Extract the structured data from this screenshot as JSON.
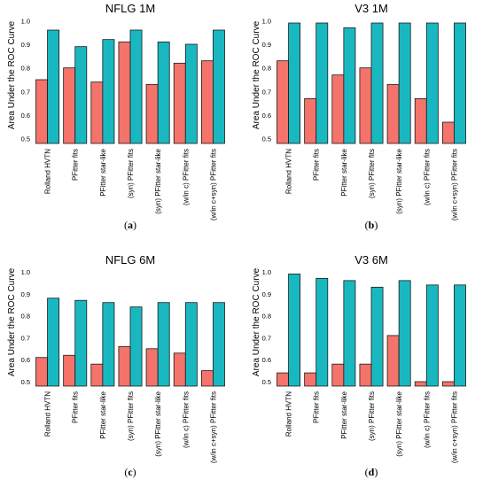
{
  "chart_data": [
    {
      "type": "bar",
      "title": "NFLG 1M",
      "ylabel": "Area Under the ROC Curve",
      "caption_letter": "a",
      "ylim": [
        0.48,
        1.02
      ],
      "yticks": [
        "1.0",
        "0.9",
        "0.8",
        "0.7",
        "0.6",
        "0.5"
      ],
      "ytick_values": [
        1.0,
        0.9,
        0.8,
        0.7,
        0.6,
        0.5
      ],
      "categories": [
        "Rolland HVTN",
        "PFitter fits",
        "PFitter star-like",
        "(syn) PFitter fits",
        "(syn) PFitter star-like",
        "(w/in c) PFitter fits",
        "(w/in c+syn) PFitter fits"
      ],
      "series": [
        {
          "color": "#f4736b",
          "values": [
            0.75,
            0.8,
            0.74,
            0.91,
            0.73,
            0.82,
            0.83
          ]
        },
        {
          "color": "#19b8c1",
          "values": [
            0.96,
            0.89,
            0.92,
            0.96,
            0.91,
            0.9,
            0.96
          ]
        }
      ]
    },
    {
      "type": "bar",
      "title": "V3 1M",
      "ylabel": "Area Under the ROC Curve",
      "caption_letter": "b",
      "ylim": [
        0.48,
        1.02
      ],
      "yticks": [
        "1.0",
        "0.9",
        "0.8",
        "0.7",
        "0.6",
        "0.5"
      ],
      "ytick_values": [
        1.0,
        0.9,
        0.8,
        0.7,
        0.6,
        0.5
      ],
      "categories": [
        "Rolland HVTN",
        "PFitter fits",
        "PFitter star-like",
        "(syn) PFitter fits",
        "(syn) PFitter star-like",
        "(w/in c) PFitter fits",
        "(w/in c+syn) PFitter fits"
      ],
      "series": [
        {
          "color": "#f4736b",
          "values": [
            0.83,
            0.67,
            0.77,
            0.8,
            0.73,
            0.67,
            0.57
          ]
        },
        {
          "color": "#19b8c1",
          "values": [
            0.99,
            0.99,
            0.97,
            0.99,
            0.99,
            0.99,
            0.99
          ]
        }
      ]
    },
    {
      "type": "bar",
      "title": "NFLG 6M",
      "ylabel": "Area Under the ROC Curve",
      "caption_letter": "c",
      "ylim": [
        0.48,
        1.02
      ],
      "yticks": [
        "1.0",
        "0.9",
        "0.8",
        "0.7",
        "0.6",
        "0.5"
      ],
      "ytick_values": [
        1.0,
        0.9,
        0.8,
        0.7,
        0.6,
        0.5
      ],
      "categories": [
        "Rolland HVTN",
        "PFitter fits",
        "PFitter star-like",
        "(syn) PFitter fits",
        "(syn) PFitter star-like",
        "(w/in c) PFitter fits",
        "(w/in c+syn) PFitter fits"
      ],
      "series": [
        {
          "color": "#f4736b",
          "values": [
            0.61,
            0.62,
            0.58,
            0.66,
            0.65,
            0.63,
            0.55
          ]
        },
        {
          "color": "#19b8c1",
          "values": [
            0.88,
            0.87,
            0.86,
            0.84,
            0.86,
            0.86,
            0.86
          ]
        }
      ]
    },
    {
      "type": "bar",
      "title": "V3 6M",
      "ylabel": "Area Under the ROC Curve",
      "caption_letter": "d",
      "ylim": [
        0.48,
        1.02
      ],
      "yticks": [
        "1.0",
        "0.9",
        "0.8",
        "0.7",
        "0.6",
        "0.5"
      ],
      "ytick_values": [
        1.0,
        0.9,
        0.8,
        0.7,
        0.6,
        0.5
      ],
      "categories": [
        "Rolland HVTN",
        "PFitter fits",
        "PFitter star-like",
        "(syn) PFitter fits",
        "(syn) PFitter star-like",
        "(w/in c) PFitter fits",
        "(w/in c+syn) PFitter fits"
      ],
      "series": [
        {
          "color": "#f4736b",
          "values": [
            0.54,
            0.54,
            0.58,
            0.58,
            0.71,
            0.5,
            0.5
          ]
        },
        {
          "color": "#19b8c1",
          "values": [
            0.99,
            0.97,
            0.96,
            0.93,
            0.96,
            0.94,
            0.94
          ]
        }
      ]
    }
  ]
}
